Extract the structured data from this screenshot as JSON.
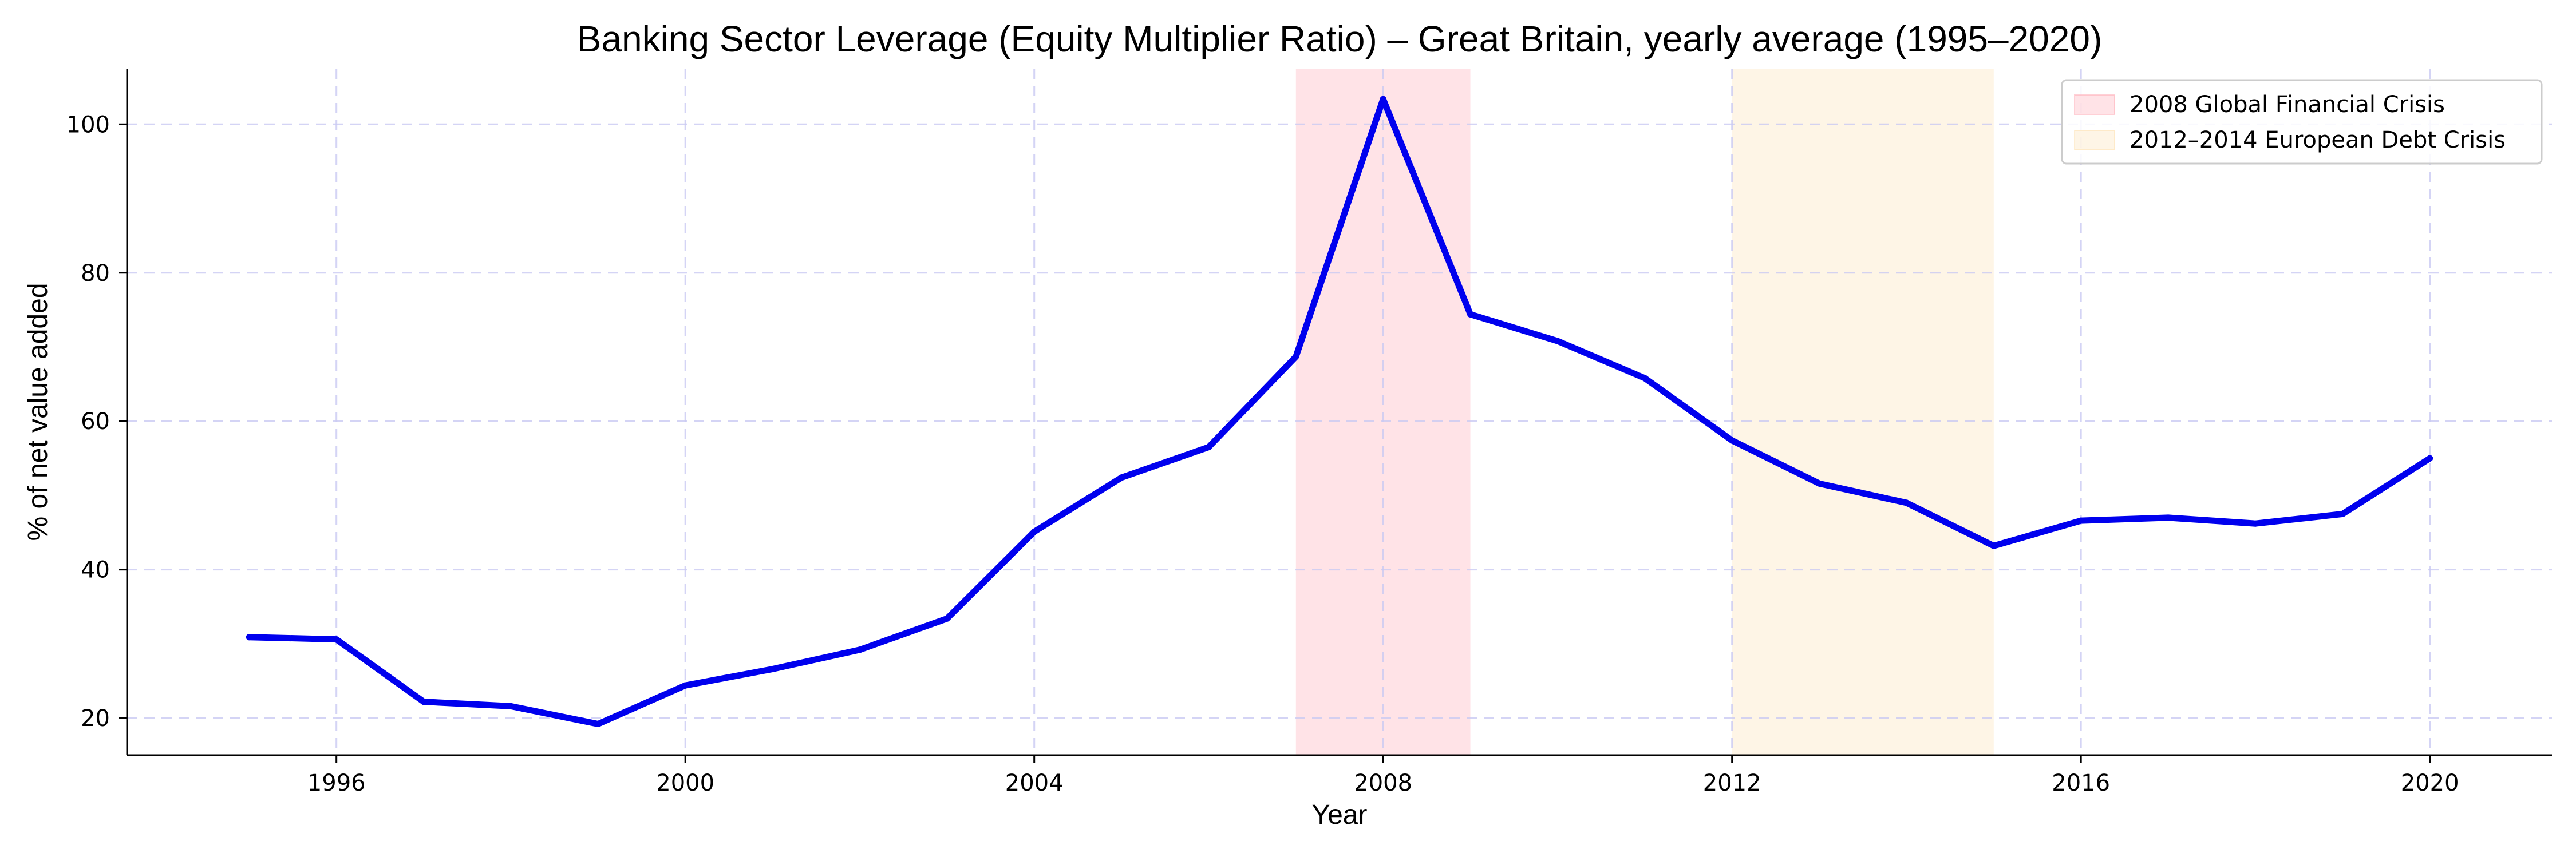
{
  "chart_data": {
    "type": "line",
    "title": "Banking Sector Leverage (Equity Multiplier Ratio) – Great Britain, yearly average (1995–2020)",
    "xlabel": "Year",
    "ylabel": "% of net value added",
    "xlim": [
      1993.6,
      2021.4
    ],
    "ylim": [
      15,
      107.5
    ],
    "xticks": [
      1996,
      2000,
      2004,
      2008,
      2012,
      2016,
      2020
    ],
    "yticks": [
      20,
      40,
      60,
      80,
      100
    ],
    "grid": true,
    "legend_position": "top-right",
    "series": [
      {
        "color": "#0000ee",
        "x": [
          1995,
          1996,
          1997,
          1998,
          1999,
          2000,
          2001,
          2002,
          2003,
          2004,
          2005,
          2006,
          2007,
          2008,
          2009,
          2010,
          2011,
          2012,
          2013,
          2014,
          2015,
          2016,
          2017,
          2018,
          2019,
          2020
        ],
        "y": [
          30.9,
          30.6,
          22.2,
          21.6,
          19.2,
          24.4,
          26.6,
          29.2,
          33.4,
          45.1,
          52.4,
          56.5,
          68.7,
          103.4,
          74.4,
          70.8,
          65.8,
          57.4,
          51.6,
          49.0,
          43.2,
          46.6,
          47.0,
          46.2,
          47.5,
          55.0
        ]
      }
    ],
    "shaded_regions": [
      {
        "label": "2008 Global Financial Crisis",
        "x_start": 2007,
        "x_end": 2009,
        "color": "#ffb0ba"
      },
      {
        "label": "2012–2014 European Debt Crisis",
        "x_start": 2012,
        "x_end": 2015,
        "color": "#fde3b6"
      }
    ]
  }
}
